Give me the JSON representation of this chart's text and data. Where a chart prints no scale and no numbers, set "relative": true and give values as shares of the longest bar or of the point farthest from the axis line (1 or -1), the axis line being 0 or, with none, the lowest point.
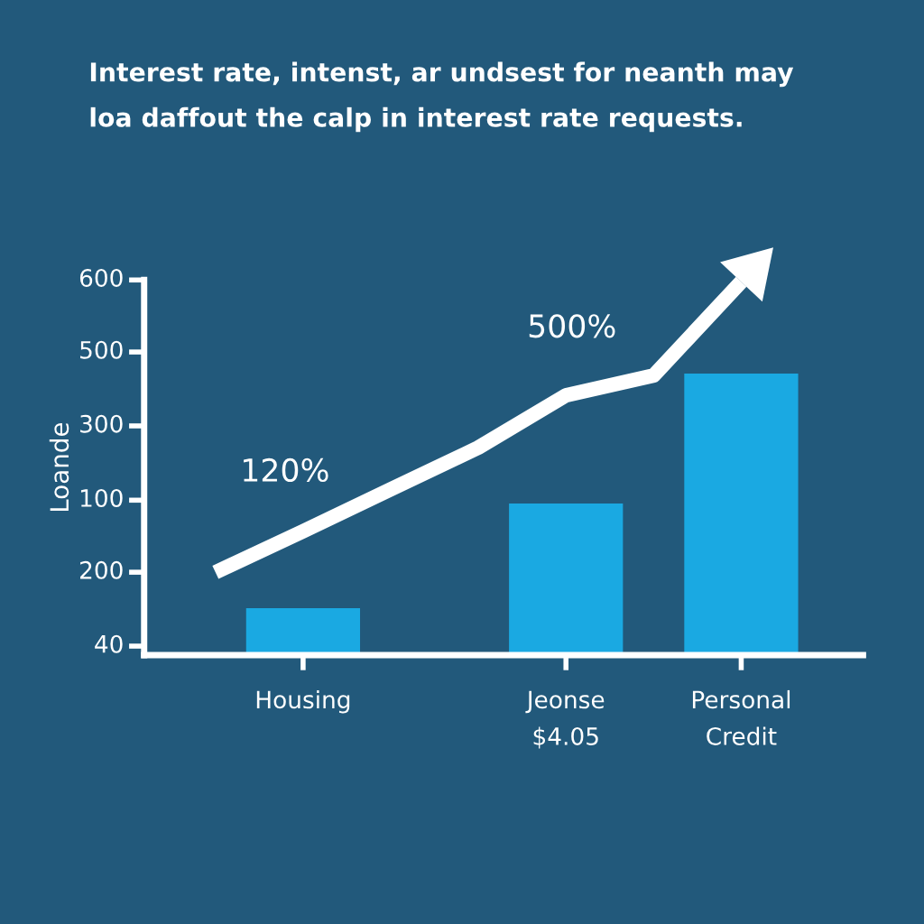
{
  "chart_data": {
    "type": "bar",
    "relative": true,
    "title": "Interest rate, intenst, ar undsest for neanth may\nloa daffout the calp in interest rate requests.",
    "ylabel": "Loande",
    "categories": [
      null,
      "Housing",
      null,
      null,
      "Jeonse\n$4.05",
      null,
      "Personal\nCredit"
    ],
    "series": [
      {
        "color": "#1aa9e2",
        "values": [
          null,
          0.126,
          null,
          null,
          0.406,
          null,
          0.754
        ]
      },
      {
        "type": "line",
        "color": "#ffffff",
        "values": [
          0.222,
          0.332,
          0.444,
          0.556,
          0.696,
          0.749,
          1
        ]
      }
    ],
    "annotations": [
      "120%",
      "500%",
      "600",
      "500",
      "300",
      "100",
      "200",
      "40"
    ],
    "grid": false,
    "marker": "none",
    "line_style": "solid"
  }
}
